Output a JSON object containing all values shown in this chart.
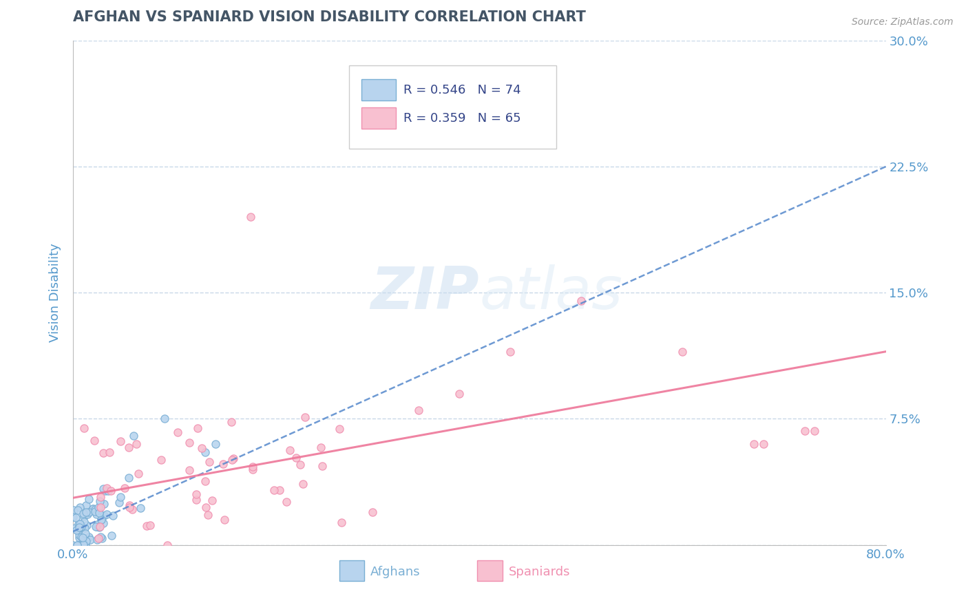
{
  "title": "AFGHAN VS SPANIARD VISION DISABILITY CORRELATION CHART",
  "source": "Source: ZipAtlas.com",
  "ylabel": "Vision Disability",
  "xlim": [
    0.0,
    0.8
  ],
  "ylim": [
    0.0,
    0.3
  ],
  "xticks": [
    0.0,
    0.8
  ],
  "xtick_labels": [
    "0.0%",
    "80.0%"
  ],
  "yticks": [
    0.0,
    0.075,
    0.15,
    0.225,
    0.3
  ],
  "ytick_labels": [
    "",
    "7.5%",
    "15.0%",
    "22.5%",
    "30.0%"
  ],
  "grid_color": "#c8d8e8",
  "background_color": "#ffffff",
  "afghan_dot_color": "#7aafd4",
  "afghan_dot_fill": "#b8d4ee",
  "spaniard_dot_color": "#f090b0",
  "spaniard_dot_fill": "#f8c0d0",
  "afghan_line_color": "#5588cc",
  "spaniard_line_color": "#ee7799",
  "afghan_R": 0.546,
  "afghan_N": 74,
  "spaniard_R": 0.359,
  "spaniard_N": 65,
  "watermark_zip": "ZIP",
  "watermark_atlas": "atlas",
  "title_color": "#445566",
  "tick_label_color": "#5599cc",
  "source_color": "#999999",
  "legend_text_color": "#334488"
}
